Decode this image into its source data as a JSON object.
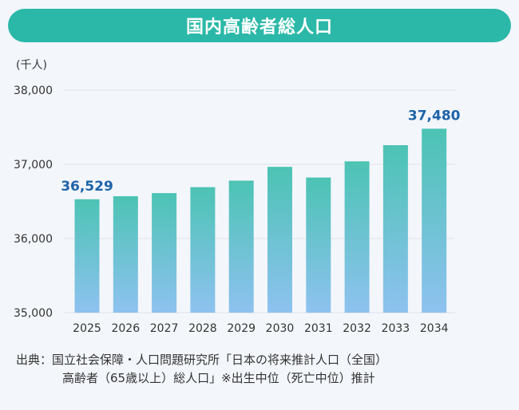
{
  "chart_data": {
    "type": "bar",
    "title": "国内高齢者総人口",
    "unit_label": "(千人)",
    "categories": [
      "2025",
      "2026",
      "2027",
      "2028",
      "2029",
      "2030",
      "2031",
      "2032",
      "2033",
      "2034"
    ],
    "values": [
      36529,
      36570,
      36612,
      36692,
      36780,
      36966,
      36822,
      37040,
      37258,
      37480
    ],
    "ylim": [
      35000,
      38000
    ],
    "yticks": [
      "35,000",
      "36,000",
      "37,000",
      "38,000"
    ],
    "ytick_values": [
      35000,
      36000,
      37000,
      38000
    ],
    "data_labels": [
      {
        "index": 0,
        "text": "36,529"
      },
      {
        "index": 9,
        "text": "37,480"
      }
    ],
    "grid": true,
    "colors": {
      "bar_top": "#4cc3b4",
      "bar_bottom": "#8ec2f0",
      "label": "#1e63a8",
      "grid": "#dfe3e8"
    }
  },
  "source": {
    "line1": "出典：国立社会保障・人口問題研究所「日本の将来推計人口（全国）",
    "line2": "高齢者（65歳以上）総人口」※出生中位（死亡中位）推計"
  },
  "colors": {
    "title_bg": "#2bb8a8",
    "page_bg": "#f3f6fb"
  }
}
